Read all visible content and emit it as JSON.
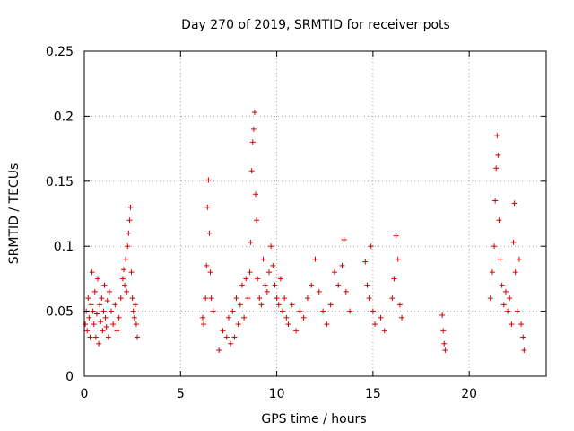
{
  "chart_data": {
    "type": "scatter",
    "title": "Day 270 of 2019, SRMTID for receiver pots",
    "xlabel": "GPS time / hours",
    "ylabel": "SRMTID / TECUs",
    "xlim": [
      0,
      24
    ],
    "ylim": [
      0,
      0.25
    ],
    "xticks": [
      0,
      5,
      10,
      15,
      20
    ],
    "yticks": [
      0,
      0.05,
      0.1,
      0.15,
      0.2,
      0.25
    ],
    "xtick_labels": [
      "0",
      "5",
      "10",
      "15",
      "20"
    ],
    "ytick_labels": [
      "0",
      "0.05",
      "0.1",
      "0.15",
      "0.2",
      "0.25"
    ],
    "grid": true,
    "marker": "+",
    "color": "#d40000",
    "series": [
      {
        "points": [
          [
            0.05,
            0.04
          ],
          [
            0.1,
            0.05
          ],
          [
            0.15,
            0.035
          ],
          [
            0.2,
            0.06
          ],
          [
            0.25,
            0.045
          ],
          [
            0.3,
            0.03
          ],
          [
            0.35,
            0.055
          ],
          [
            0.4,
            0.08
          ],
          [
            0.45,
            0.05
          ],
          [
            0.5,
            0.04
          ],
          [
            0.55,
            0.065
          ],
          [
            0.6,
            0.03
          ],
          [
            0.65,
            0.048
          ],
          [
            0.7,
            0.075
          ],
          [
            0.75,
            0.025
          ],
          [
            0.8,
            0.055
          ],
          [
            0.85,
            0.042
          ],
          [
            0.9,
            0.06
          ],
          [
            0.95,
            0.035
          ],
          [
            1.0,
            0.05
          ],
          [
            1.05,
            0.07
          ],
          [
            1.1,
            0.045
          ],
          [
            1.15,
            0.038
          ],
          [
            1.2,
            0.058
          ],
          [
            1.25,
            0.03
          ],
          [
            1.3,
            0.065
          ],
          [
            1.4,
            0.05
          ],
          [
            1.5,
            0.04
          ],
          [
            1.6,
            0.055
          ],
          [
            1.7,
            0.035
          ],
          [
            1.8,
            0.045
          ],
          [
            1.9,
            0.06
          ],
          [
            2.0,
            0.075
          ],
          [
            2.05,
            0.082
          ],
          [
            2.1,
            0.07
          ],
          [
            2.15,
            0.09
          ],
          [
            2.2,
            0.065
          ],
          [
            2.25,
            0.1
          ],
          [
            2.3,
            0.11
          ],
          [
            2.35,
            0.12
          ],
          [
            2.4,
            0.13
          ],
          [
            2.45,
            0.08
          ],
          [
            2.5,
            0.06
          ],
          [
            2.55,
            0.05
          ],
          [
            2.6,
            0.045
          ],
          [
            2.65,
            0.055
          ],
          [
            2.7,
            0.04
          ],
          [
            2.75,
            0.03
          ],
          [
            6.15,
            0.045
          ],
          [
            6.2,
            0.04
          ],
          [
            6.3,
            0.06
          ],
          [
            6.35,
            0.085
          ],
          [
            6.4,
            0.13
          ],
          [
            6.45,
            0.151
          ],
          [
            6.5,
            0.11
          ],
          [
            6.55,
            0.08
          ],
          [
            6.6,
            0.06
          ],
          [
            6.7,
            0.05
          ],
          [
            7.0,
            0.02
          ],
          [
            7.2,
            0.035
          ],
          [
            7.4,
            0.03
          ],
          [
            7.5,
            0.045
          ],
          [
            7.6,
            0.025
          ],
          [
            7.7,
            0.05
          ],
          [
            7.8,
            0.03
          ],
          [
            7.9,
            0.06
          ],
          [
            8.0,
            0.04
          ],
          [
            8.1,
            0.055
          ],
          [
            8.2,
            0.07
          ],
          [
            8.3,
            0.045
          ],
          [
            8.4,
            0.075
          ],
          [
            8.5,
            0.06
          ],
          [
            8.6,
            0.08
          ],
          [
            8.65,
            0.103
          ],
          [
            8.7,
            0.158
          ],
          [
            8.75,
            0.18
          ],
          [
            8.8,
            0.19
          ],
          [
            8.85,
            0.203
          ],
          [
            8.9,
            0.14
          ],
          [
            8.95,
            0.12
          ],
          [
            9.0,
            0.075
          ],
          [
            9.1,
            0.06
          ],
          [
            9.2,
            0.055
          ],
          [
            9.3,
            0.09
          ],
          [
            9.4,
            0.07
          ],
          [
            9.5,
            0.065
          ],
          [
            9.6,
            0.08
          ],
          [
            9.7,
            0.1
          ],
          [
            9.8,
            0.085
          ],
          [
            9.9,
            0.07
          ],
          [
            10.0,
            0.06
          ],
          [
            10.1,
            0.055
          ],
          [
            10.2,
            0.075
          ],
          [
            10.3,
            0.05
          ],
          [
            10.4,
            0.06
          ],
          [
            10.5,
            0.045
          ],
          [
            10.6,
            0.04
          ],
          [
            10.8,
            0.055
          ],
          [
            11.0,
            0.035
          ],
          [
            11.2,
            0.05
          ],
          [
            11.4,
            0.045
          ],
          [
            11.6,
            0.06
          ],
          [
            11.8,
            0.07
          ],
          [
            12.0,
            0.09
          ],
          [
            12.2,
            0.065
          ],
          [
            12.4,
            0.05
          ],
          [
            12.6,
            0.04
          ],
          [
            12.8,
            0.055
          ],
          [
            13.0,
            0.08
          ],
          [
            13.2,
            0.07
          ],
          [
            13.4,
            0.085
          ],
          [
            13.5,
            0.105
          ],
          [
            13.6,
            0.065
          ],
          [
            13.8,
            0.05
          ],
          [
            14.6,
            0.088
          ],
          [
            14.7,
            0.07
          ],
          [
            14.8,
            0.06
          ],
          [
            14.9,
            0.1
          ],
          [
            15.0,
            0.05
          ],
          [
            15.1,
            0.04
          ],
          [
            15.4,
            0.045
          ],
          [
            15.6,
            0.035
          ],
          [
            16.0,
            0.06
          ],
          [
            16.1,
            0.075
          ],
          [
            16.2,
            0.108
          ],
          [
            16.3,
            0.09
          ],
          [
            16.4,
            0.055
          ],
          [
            16.5,
            0.045
          ],
          [
            18.6,
            0.047
          ],
          [
            18.65,
            0.035
          ],
          [
            18.7,
            0.025
          ],
          [
            18.75,
            0.02
          ],
          [
            21.1,
            0.06
          ],
          [
            21.2,
            0.08
          ],
          [
            21.3,
            0.1
          ],
          [
            21.35,
            0.135
          ],
          [
            21.4,
            0.16
          ],
          [
            21.45,
            0.185
          ],
          [
            21.5,
            0.17
          ],
          [
            21.55,
            0.12
          ],
          [
            21.6,
            0.09
          ],
          [
            21.7,
            0.07
          ],
          [
            21.8,
            0.055
          ],
          [
            21.9,
            0.065
          ],
          [
            22.0,
            0.05
          ],
          [
            22.1,
            0.06
          ],
          [
            22.2,
            0.04
          ],
          [
            22.3,
            0.103
          ],
          [
            22.35,
            0.133
          ],
          [
            22.4,
            0.08
          ],
          [
            22.5,
            0.05
          ],
          [
            22.6,
            0.09
          ],
          [
            22.7,
            0.04
          ],
          [
            22.8,
            0.03
          ],
          [
            22.85,
            0.02
          ]
        ]
      }
    ]
  }
}
